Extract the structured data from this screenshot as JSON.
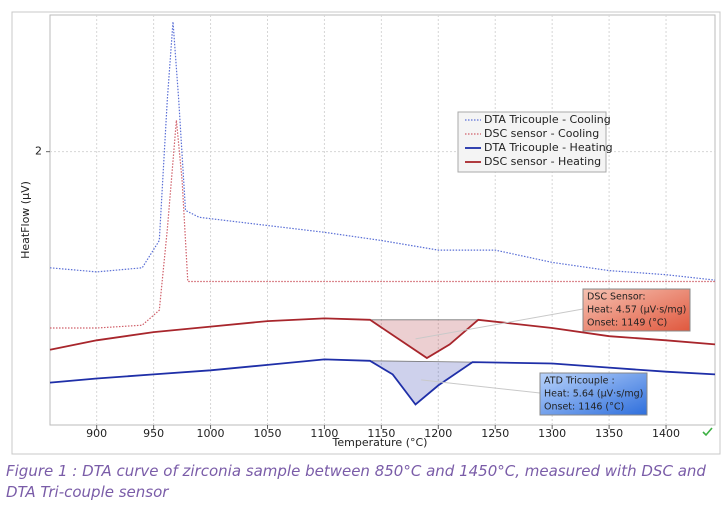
{
  "chart_data": {
    "type": "line",
    "xlabel": "Temperature (°C)",
    "ylabel": "HeatFlow (µV)",
    "xlim": [
      859,
      1443
    ],
    "xticks": [
      900,
      950,
      1000,
      1050,
      1100,
      1150,
      1200,
      1250,
      1300,
      1350,
      1400
    ],
    "ylim": [
      0,
      3
    ],
    "yticks": [
      2
    ],
    "grid": true,
    "series": [
      {
        "name": "DTA Tricouple - Cooling",
        "color": "#5a6fd6",
        "style": "dotted",
        "x": [
          859,
          900,
          940,
          955,
          962,
          967,
          972,
          978,
          990,
          1050,
          1100,
          1150,
          1200,
          1250,
          1300,
          1350,
          1400,
          1443
        ],
        "values": [
          1.15,
          1.12,
          1.15,
          1.35,
          2.38,
          2.95,
          2.38,
          1.57,
          1.52,
          1.46,
          1.41,
          1.35,
          1.28,
          1.28,
          1.19,
          1.13,
          1.1,
          1.06
        ]
      },
      {
        "name": "DSC sensor - Cooling",
        "color": "#d0606a",
        "style": "dotted",
        "x": [
          859,
          900,
          940,
          955,
          962,
          970,
          975,
          980,
          1050,
          1200,
          1443
        ],
        "values": [
          0.71,
          0.71,
          0.73,
          0.84,
          1.43,
          2.23,
          1.79,
          1.05,
          1.05,
          1.05,
          1.05
        ]
      },
      {
        "name": "DTA Tricouple - Heating",
        "color": "#1f2fa8",
        "style": "solid",
        "x": [
          859,
          900,
          950,
          1000,
          1050,
          1100,
          1140,
          1160,
          1180,
          1200,
          1230,
          1300,
          1350,
          1400,
          1443
        ],
        "values": [
          0.31,
          0.34,
          0.37,
          0.4,
          0.44,
          0.48,
          0.47,
          0.37,
          0.15,
          0.29,
          0.46,
          0.45,
          0.42,
          0.39,
          0.37
        ]
      },
      {
        "name": "DSC sensor - Heating",
        "color": "#a8262c",
        "style": "solid",
        "x": [
          859,
          900,
          950,
          1000,
          1050,
          1100,
          1140,
          1165,
          1190,
          1210,
          1235,
          1300,
          1350,
          1400,
          1443
        ],
        "values": [
          0.55,
          0.62,
          0.68,
          0.72,
          0.76,
          0.78,
          0.77,
          0.63,
          0.49,
          0.59,
          0.77,
          0.71,
          0.65,
          0.62,
          0.59
        ]
      }
    ],
    "annotations": [
      {
        "lines": [
          "DSC Sensor:",
          "Heat: 4.57 (µV·s/mg)",
          "Onset: 1149 (°C)"
        ],
        "color": "#e8735a"
      },
      {
        "lines": [
          "ATD Tricouple :",
          "Heat: 5.64 (µV·s/mg)",
          "Onset: 1146 (°C)"
        ],
        "color": "#3f7fe0"
      }
    ],
    "caption": "Figure 1 : DTA curve of zirconia sample between 850°C and 1450°C, measured with DSC and DTA Tri-couple sensor"
  }
}
